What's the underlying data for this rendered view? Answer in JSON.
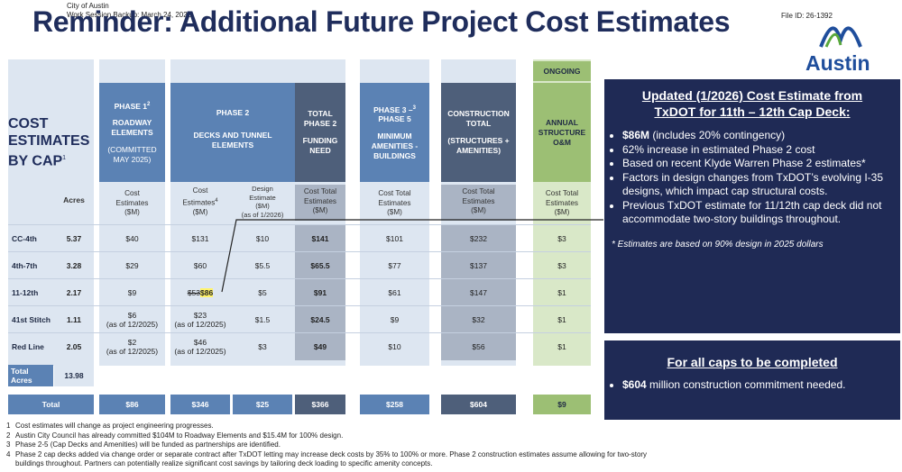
{
  "header": {
    "city": "City of Austin",
    "session": "Work Session Backup: March 24, 2026",
    "title": "Reminder: Additional Future Project Cost Estimates",
    "file_id": "File ID: 26-1392",
    "logo_text": "Austin"
  },
  "side_label": {
    "lines": [
      "COST",
      "ESTIMATES",
      "BY CAP"
    ],
    "footnote_mark": "1"
  },
  "columns": {
    "phase1": {
      "title": "PHASE 1",
      "sup": "2",
      "line2": "ROADWAY",
      "line3": "ELEMENTS",
      "line4": "(COMMITTED",
      "line5": "MAY 2025)"
    },
    "phase2": {
      "title": "PHASE 2",
      "line2": "DECKS AND TUNNEL",
      "line3": "ELEMENTS"
    },
    "total2": {
      "line1": "TOTAL",
      "line2": "PHASE 2",
      "line3": "FUNDING",
      "line4": "NEED"
    },
    "phase35": {
      "title": "PHASE 3 –",
      "sup": "3",
      "line2": "PHASE 5",
      "line3": "MINIMUM",
      "line4": "AMENITIES -",
      "line5": "BUILDINGS"
    },
    "construction": {
      "line1": "CONSTRUCTION",
      "line2": "TOTAL",
      "line3": "(STRUCTURES +",
      "line4": "AMENITIES)"
    },
    "ongoing": {
      "label": "ONGOING",
      "line1": "ANNUAL",
      "line2": "STRUCTURE",
      "line3": "O&M"
    }
  },
  "subheaders": {
    "acres": "Acres",
    "p1": [
      "Cost",
      "Estimates",
      "($M)"
    ],
    "p2cost": [
      "Cost",
      "Estimates",
      "($M)"
    ],
    "p2cost_sup": "4",
    "p2design": [
      "Design",
      "Estimate",
      "($M)",
      "(as of 1/2026)"
    ],
    "total2": [
      "Cost Total",
      "Estimates",
      "($M)"
    ],
    "p35": [
      "Cost Total",
      "Estimates",
      "($M)"
    ],
    "construction": [
      "Cost Total",
      "Estimates",
      "($M)"
    ],
    "om": [
      "Cost Total",
      "Estimates",
      "($M)"
    ]
  },
  "rows": [
    {
      "name": "CC-4th",
      "acres": "5.37",
      "p1": "$40",
      "p1_note": "",
      "p2cost": "$131",
      "p2cost_note": "",
      "p2design": "$10",
      "total2": "$141",
      "p35": "$101",
      "construction": "$232",
      "om": "$3"
    },
    {
      "name": "4th-7th",
      "acres": "3.28",
      "p1": "$29",
      "p1_note": "",
      "p2cost": "$60",
      "p2cost_note": "",
      "p2design": "$5.5",
      "total2": "$65.5",
      "p35": "$77",
      "construction": "$137",
      "om": "$3"
    },
    {
      "name": "11-12th",
      "acres": "2.17",
      "p1": "$9",
      "p1_note": "",
      "p2cost": "$53",
      "p2cost_note": "",
      "p2design": "$5",
      "total2": "$91",
      "p35": "$61",
      "construction": "$147",
      "om": "$1"
    },
    {
      "name": "41st Stitch",
      "acres": "1.11",
      "p1": "$6",
      "p1_note": "(as of 12/2025)",
      "p2cost": "$23",
      "p2cost_note": "(as of 12/2025)",
      "p2design": "$1.5",
      "total2": "$24.5",
      "p35": "$9",
      "construction": "$32",
      "om": "$1"
    },
    {
      "name": "Red Line",
      "acres": "2.05",
      "p1": "$2",
      "p1_note": "(as of 12/2025)",
      "p2cost": "$46",
      "p2cost_note": "(as of 12/2025)",
      "p2design": "$3",
      "total2": "$49",
      "p35": "$10",
      "construction": "$56",
      "om": "$1"
    }
  ],
  "updated_value": "$86",
  "total_acres": {
    "label_line1": "Total",
    "label_line2": "Acres",
    "value": "13.98"
  },
  "totals": {
    "label": "Total",
    "p1": "$86",
    "p2cost": "$346",
    "p2design": "$25",
    "total2": "$366",
    "p35": "$258",
    "construction": "$604",
    "om": "$9"
  },
  "panel1": {
    "title_line1": "Updated (1/2026) Cost Estimate from",
    "title_line2": "TxDOT for 11th – 12th Cap Deck:",
    "b1_bold": "$86M",
    "b1_rest": " (includes 20% contingency)",
    "b2": "62% increase in estimated Phase 2 cost",
    "b3": "Based on recent Klyde Warren Phase 2 estimates*",
    "b4": "Factors in design changes from TxDOT’s evolving I-35 designs, which impact cap structural costs.",
    "b5": "Previous TxDOT estimate for 11/12th cap deck did not accommodate two-story buildings throughout.",
    "note": "* Estimates are based on 90% design in 2025 dollars"
  },
  "panel2": {
    "title": "For all caps to be completed",
    "b1_bold": "$604",
    "b1_rest": " million construction commitment needed."
  },
  "footnotes": [
    "Cost estimates will change as project engineering progresses.",
    "Austin City Council has already committed $104M to Roadway Elements and $15.4M for 100% design.",
    "Phase 2-5 (Cap Decks and Amenities) will be funded as partnerships are identified.",
    "Phase 2 cap decks added via change order or separate contract after TxDOT letting may increase deck costs by 35% to 100% or more. Phase 2 construction estimates assume allowing for two-story buildings throughout. Partners can potentially realize significant cost savings by tailoring deck loading to specific amenity concepts."
  ],
  "colors": {
    "navy": "#1f2a55",
    "blue": "#5b82b4",
    "slate": "#4e5f7a",
    "green": "#9cbf74",
    "light_blue": "#dde6f1",
    "light_green": "#d9e8c8"
  }
}
